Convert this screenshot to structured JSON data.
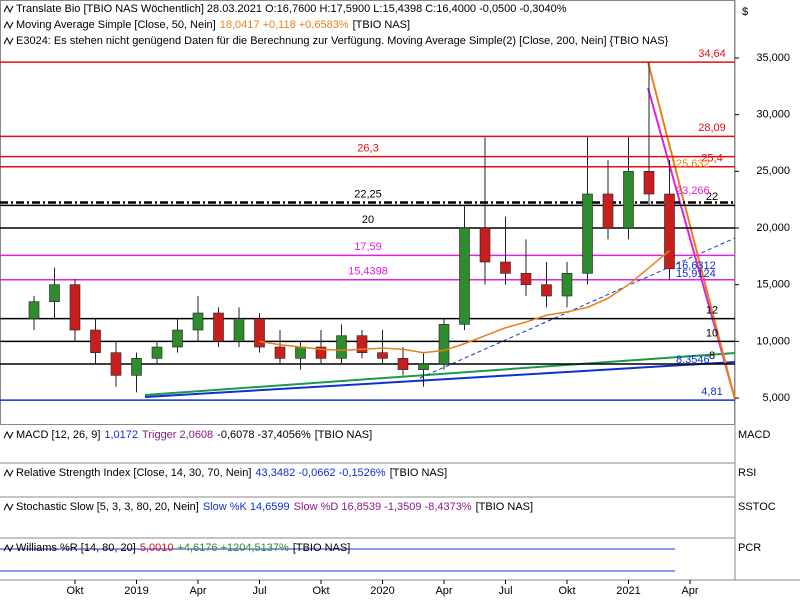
{
  "chart_data": {
    "type": "candlestick",
    "currency": "$",
    "headers": [
      [
        {
          "text": "Translate Bio [TBIO NAS  Wöchentlich] 28.03.2021 O:16,7600 H:17,5900 L:15,4398 C:16,4000 -0,0500 -0,3040%",
          "color": "#000000"
        }
      ],
      [
        {
          "text": "Moving Average Simple [Close, 50, Nein]",
          "color": "#000000"
        },
        {
          "text": "18,0417 +0,118 +0,6583%",
          "color": "#e8801a"
        },
        {
          "text": "[TBIO NAS]",
          "color": "#000000"
        }
      ],
      [
        {
          "text": "E3024: Es stehen nicht genügend Daten für die Berechnung zur Verfügung. Moving Average Simple(2) [Close, 200, Nein] {TBIO NAS}",
          "color": "#000000"
        }
      ]
    ],
    "categories": [
      null,
      null,
      "Okt",
      null,
      null,
      "2019",
      null,
      null,
      "Apr",
      null,
      null,
      "Jul",
      null,
      null,
      "Okt",
      null,
      null,
      "2020",
      null,
      null,
      "Apr",
      null,
      null,
      "Jul",
      null,
      null,
      "Okt",
      null,
      null,
      "2021",
      null,
      null,
      "Apr"
    ],
    "open": [
      12,
      13.5,
      15,
      11,
      9,
      7,
      8.5,
      9.5,
      11,
      12.5,
      10,
      12,
      9.5,
      8.5,
      9.5,
      8.5,
      10.5,
      9,
      8.5,
      7.5,
      8,
      11.5,
      20,
      17,
      16,
      15,
      14,
      16,
      23,
      20,
      25,
      23,
      null
    ],
    "high": [
      14,
      16.5,
      15.5,
      12,
      10,
      9,
      10,
      12,
      14,
      13,
      13,
      12.5,
      11,
      10,
      11,
      11.5,
      11,
      11,
      9.5,
      9,
      12,
      22,
      28,
      21,
      19,
      17,
      17,
      28,
      26,
      28,
      34.64,
      26,
      null
    ],
    "low": [
      11,
      12,
      10,
      8,
      6,
      5.5,
      8,
      9,
      10,
      9.5,
      9.5,
      9,
      8,
      7.5,
      8,
      8,
      8.5,
      8,
      7,
      6,
      7.5,
      11,
      15,
      15,
      14,
      13,
      13,
      15,
      19,
      19,
      22,
      15.4398,
      null
    ],
    "close": [
      13.5,
      15,
      11,
      9,
      7,
      8.5,
      9.5,
      11,
      12.5,
      10,
      12,
      9.5,
      8.5,
      9.5,
      8.5,
      10.5,
      9,
      8.5,
      7.5,
      8,
      11.5,
      20,
      17,
      16,
      15,
      14,
      16,
      23,
      20,
      25,
      23,
      16.4,
      null
    ],
    "series": [
      {
        "name": "Moving Average Simple [Close, 50, Nein]",
        "color": "#e8801a",
        "values": [
          null,
          null,
          null,
          null,
          null,
          null,
          null,
          null,
          null,
          null,
          null,
          10,
          9.7,
          9.5,
          9.3,
          9.2,
          9.3,
          9.4,
          9.3,
          9,
          9.2,
          9.8,
          10.5,
          11.2,
          11.7,
          12.3,
          12.6,
          13,
          13.8,
          15,
          16.5,
          18,
          null
        ]
      }
    ],
    "up_color": "#2e8b2e",
    "down_color": "#c81e1e",
    "ylim": [
      2.62,
      39.94
    ],
    "yticks": [
      {
        "value": 5,
        "label": "5,000"
      },
      {
        "value": 10,
        "label": "10,000"
      },
      {
        "value": 15,
        "label": "15,000"
      },
      {
        "value": 20,
        "label": "20,000"
      },
      {
        "value": 25,
        "label": "25,000"
      },
      {
        "value": 30,
        "label": "30,000"
      },
      {
        "value": 35,
        "label": "35,000"
      }
    ],
    "levels": [
      {
        "value": 34.64,
        "label": "34,64",
        "color": "#e01010"
      },
      {
        "value": 28.09,
        "label": "28,09",
        "color": "#e01010"
      },
      {
        "value": 26.3,
        "label": "26,3",
        "color": "#e01010"
      },
      {
        "value": 25.4,
        "label": "25,4",
        "color": "#e01010"
      },
      {
        "value": 22.25,
        "label": "22,25",
        "color": "#000000"
      },
      {
        "value": 22,
        "label": "22",
        "color": "#000000"
      },
      {
        "value": 20,
        "label": "20",
        "color": "#000000"
      },
      {
        "value": 17.59,
        "label": "17,59",
        "color": "#e020e0"
      },
      {
        "value": 15.4398,
        "label": "15,4398",
        "color": "#e020e0"
      },
      {
        "value": 12,
        "label": "12",
        "color": "#000000"
      },
      {
        "value": 10,
        "label": "10",
        "color": "#000000"
      },
      {
        "value": 8,
        "label": "8",
        "color": "#000000"
      },
      {
        "value": 4.81,
        "label": "4,81",
        "color": "#1030d0"
      }
    ],
    "indicator_labels": [
      {
        "value": 25.632,
        "label": "25,632",
        "color": "#e8801a"
      },
      {
        "value": 23.266,
        "label": "23,266",
        "color": "#e020e0"
      },
      {
        "value": 16.6312,
        "label": "16,6312",
        "color": "#1030d0"
      },
      {
        "value": 15.9124,
        "label": "15,9124",
        "color": "#1030d0"
      },
      {
        "value": 8.3546,
        "label": "8,3546",
        "color": "#1030d0"
      }
    ],
    "panels": [
      {
        "label": "MACD",
        "header": [
          {
            "text": "MACD [12, 26, 9]",
            "color": "#000000"
          },
          {
            "text": "1,0172",
            "color": "#1030d0"
          },
          {
            "text": "Trigger 2,0608",
            "color": "#8a1a8a"
          },
          {
            "text": "-0,6078 -37,4056%",
            "color": "#000000"
          },
          {
            "text": "[TBIO NAS]",
            "color": "#000000"
          }
        ]
      },
      {
        "label": "RSI",
        "header": [
          {
            "text": "Relative Strength Index [Close, 14, 30, 70, Nein]",
            "color": "#000000"
          },
          {
            "text": "43,3482 -0,0662 -0,1526%",
            "color": "#1030d0"
          },
          {
            "text": "[TBIO NAS]",
            "color": "#000000"
          }
        ]
      },
      {
        "label": "SSTOC",
        "header": [
          {
            "text": "Stochastic Slow [5, 3, 3, 80, 20, Nein]",
            "color": "#000000"
          },
          {
            "text": "Slow %K 14,6599",
            "color": "#1030d0"
          },
          {
            "text": "Slow %D 16,8539 -1,3509 -8,4373%",
            "color": "#8a1a8a"
          },
          {
            "text": "[TBIO NAS]",
            "color": "#000000"
          }
        ]
      },
      {
        "label": "PCR",
        "header": [
          {
            "text": "Williams %R [14, 80, 20]",
            "color": "#000000"
          },
          {
            "text": "5,0010",
            "color": "#e01010"
          },
          {
            "text": "+4,6176 +1204,5137%",
            "color": "#2e8b2e"
          },
          {
            "text": "[TBIO NAS]",
            "color": "#000000"
          }
        ]
      }
    ]
  }
}
